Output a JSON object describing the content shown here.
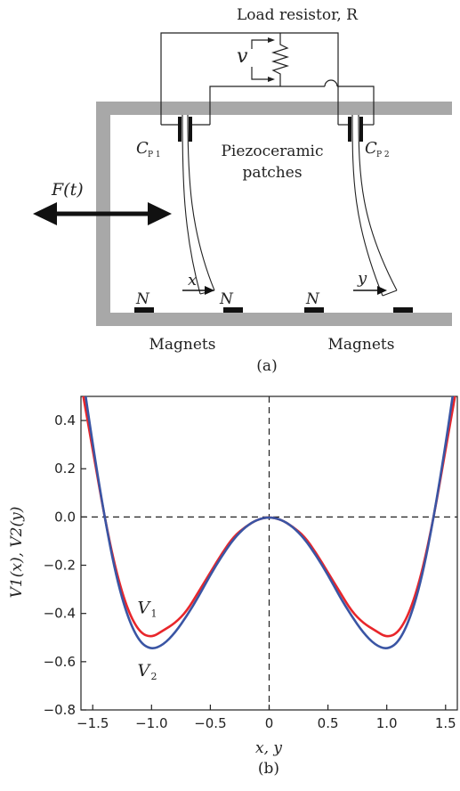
{
  "diagram": {
    "load_resistor_label": "Load resistor, R",
    "voltage_label": "v",
    "cp1_label": "C",
    "cp1_sub": "P 1",
    "cp2_label": "C",
    "cp2_sub": "P 2",
    "piezo_line1": "Piezoceramic",
    "piezo_line2": "patches",
    "force_label": "F(t)",
    "x_label": "x",
    "y_label": "y",
    "n_labels": [
      "N",
      "N",
      "N"
    ],
    "magnets_left": "Magnets",
    "magnets_right": "Magnets",
    "caption_a": "(a)"
  },
  "chart_data": {
    "type": "line",
    "xlabel": "x, y",
    "ylabel": "V1(x), V2(y)",
    "xlim": [
      -1.6,
      1.6
    ],
    "ylim": [
      -0.8,
      0.5
    ],
    "xticks": [
      "−1.5",
      "−1.0",
      "−0.5",
      "0",
      "0.5",
      "1.0",
      "1.5"
    ],
    "yticks": [
      "0.4",
      "0.2",
      "0.0",
      "−0.2",
      "−0.4",
      "−0.6",
      "−0.8"
    ],
    "series": [
      {
        "name": "V1",
        "color": "#e8262b",
        "x": [
          -1.58,
          -1.5,
          -1.4,
          -1.3,
          -1.2,
          -1.1,
          -1.0,
          -0.9,
          -0.8,
          -0.7,
          -0.6,
          -0.5,
          -0.4,
          -0.3,
          -0.2,
          -0.1,
          0,
          0.1,
          0.2,
          0.3,
          0.4,
          0.5,
          0.6,
          0.7,
          0.8,
          0.9,
          1.0,
          1.1,
          1.2,
          1.3,
          1.4,
          1.5,
          1.58
        ],
        "y": [
          0.51,
          0.28,
          0.0,
          -0.23,
          -0.39,
          -0.48,
          -0.5,
          -0.47,
          -0.44,
          -0.39,
          -0.31,
          -0.23,
          -0.15,
          -0.08,
          -0.04,
          -0.01,
          0.0,
          -0.01,
          -0.04,
          -0.08,
          -0.15,
          -0.23,
          -0.31,
          -0.39,
          -0.44,
          -0.47,
          -0.5,
          -0.48,
          -0.39,
          -0.23,
          0.0,
          0.28,
          0.51
        ]
      },
      {
        "name": "V2",
        "color": "#3a55a4",
        "x": [
          -1.56,
          -1.5,
          -1.4,
          -1.3,
          -1.2,
          -1.1,
          -1.0,
          -0.9,
          -0.8,
          -0.7,
          -0.6,
          -0.5,
          -0.4,
          -0.3,
          -0.2,
          -0.1,
          0,
          0.1,
          0.2,
          0.3,
          0.4,
          0.5,
          0.6,
          0.7,
          0.8,
          0.9,
          1.0,
          1.1,
          1.2,
          1.3,
          1.4,
          1.5,
          1.56
        ],
        "y": [
          0.51,
          0.3,
          0.0,
          -0.25,
          -0.42,
          -0.52,
          -0.55,
          -0.53,
          -0.48,
          -0.41,
          -0.33,
          -0.24,
          -0.16,
          -0.09,
          -0.04,
          -0.01,
          0.0,
          -0.01,
          -0.04,
          -0.09,
          -0.16,
          -0.24,
          -0.33,
          -0.41,
          -0.48,
          -0.53,
          -0.55,
          -0.52,
          -0.42,
          -0.25,
          0.0,
          0.3,
          0.51
        ]
      }
    ],
    "annotations": [
      {
        "text": "V",
        "sub": "1"
      },
      {
        "text": "V",
        "sub": "2"
      }
    ],
    "reference_lines": {
      "horizontal_y": 0.0,
      "vertical_x": 0.0,
      "style": "dashed"
    },
    "caption": "(b)"
  }
}
